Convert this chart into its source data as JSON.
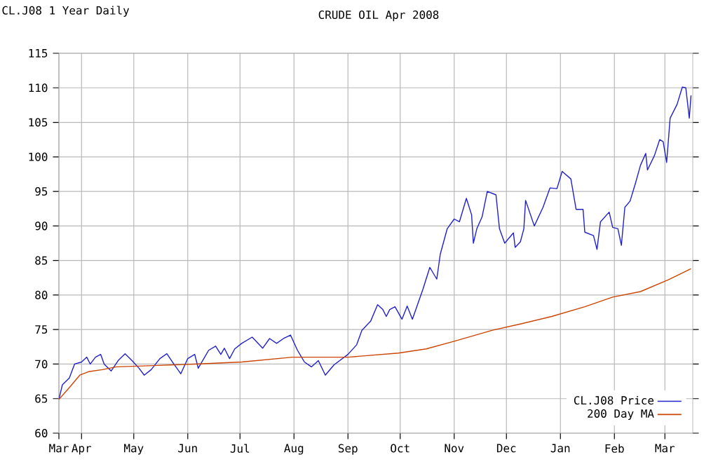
{
  "chart_data": {
    "type": "line",
    "title": "CRUDE OIL Apr 2008",
    "subtitle": "CL.J08 1 Year Daily",
    "xlim": [
      "2007-03-19",
      "2008-03-17"
    ],
    "xticks": [
      {
        "value": "2007-03-19",
        "label": "Mar"
      },
      {
        "value": "2007-04-01",
        "label": "Apr"
      },
      {
        "value": "2007-05-01",
        "label": "May"
      },
      {
        "value": "2007-06-01",
        "label": "Jun"
      },
      {
        "value": "2007-07-01",
        "label": "Jul"
      },
      {
        "value": "2007-08-01",
        "label": "Aug"
      },
      {
        "value": "2007-09-01",
        "label": "Sep"
      },
      {
        "value": "2007-10-01",
        "label": "Oct"
      },
      {
        "value": "2007-11-01",
        "label": "Nov"
      },
      {
        "value": "2007-12-01",
        "label": "Dec"
      },
      {
        "value": "2008-01-01",
        "label": "Jan"
      },
      {
        "value": "2008-02-01",
        "label": "Feb"
      },
      {
        "value": "2008-03-01",
        "label": "Mar"
      }
    ],
    "ylim": [
      60,
      115
    ],
    "yticks": [
      60,
      65,
      70,
      75,
      80,
      85,
      90,
      95,
      100,
      105,
      110,
      115
    ],
    "grid": true,
    "legend": "bottom right",
    "marker": "none",
    "line_style": "solid",
    "series": [
      {
        "name": "CL.J08 Price",
        "color": "#2020cc",
        "x": [
          "2007-03-19",
          "2007-03-21",
          "2007-03-25",
          "2007-03-28",
          "2007-04-01",
          "2007-04-04",
          "2007-04-06",
          "2007-04-09",
          "2007-04-12",
          "2007-04-14",
          "2007-04-18",
          "2007-04-22",
          "2007-04-26",
          "2007-04-30",
          "2007-05-04",
          "2007-05-07",
          "2007-05-11",
          "2007-05-16",
          "2007-05-20",
          "2007-05-24",
          "2007-05-28",
          "2007-06-01",
          "2007-06-05",
          "2007-06-07",
          "2007-06-13",
          "2007-06-17",
          "2007-06-20",
          "2007-06-22",
          "2007-06-25",
          "2007-06-28",
          "2007-07-02",
          "2007-07-08",
          "2007-07-14",
          "2007-07-18",
          "2007-07-22",
          "2007-07-26",
          "2007-07-30",
          "2007-08-03",
          "2007-08-07",
          "2007-08-11",
          "2007-08-15",
          "2007-08-19",
          "2007-08-24",
          "2007-09-01",
          "2007-09-06",
          "2007-09-09",
          "2007-09-14",
          "2007-09-18",
          "2007-09-21",
          "2007-09-23",
          "2007-09-25",
          "2007-09-28",
          "2007-10-02",
          "2007-10-05",
          "2007-10-08",
          "2007-10-14",
          "2007-10-18",
          "2007-10-22",
          "2007-10-24",
          "2007-10-28",
          "2007-11-01",
          "2007-11-04",
          "2007-11-08",
          "2007-11-11",
          "2007-11-12",
          "2007-11-14",
          "2007-11-17",
          "2007-11-20",
          "2007-11-25",
          "2007-11-27",
          "2007-11-30",
          "2007-12-05",
          "2007-12-06",
          "2007-12-09",
          "2007-12-11",
          "2007-12-12",
          "2007-12-17",
          "2007-12-22",
          "2007-12-26",
          "2007-12-30",
          "2008-01-02",
          "2008-01-07",
          "2008-01-10",
          "2008-01-14",
          "2008-01-15",
          "2008-01-20",
          "2008-01-22",
          "2008-01-24",
          "2008-01-29",
          "2008-01-31",
          "2008-02-03",
          "2008-02-05",
          "2008-02-07",
          "2008-02-10",
          "2008-02-13",
          "2008-02-16",
          "2008-02-19",
          "2008-02-20",
          "2008-02-24",
          "2008-02-27",
          "2008-02-29",
          "2008-03-02",
          "2008-03-04",
          "2008-03-08",
          "2008-03-11",
          "2008-03-13",
          "2008-03-15",
          "2008-03-16"
        ],
        "values": [
          64.9,
          67,
          68,
          70,
          70.3,
          71,
          70,
          71,
          71.4,
          70,
          69,
          70.5,
          71.5,
          70.5,
          69.4,
          68.4,
          69.2,
          70.8,
          71.5,
          70,
          68.6,
          70.8,
          71.4,
          69.4,
          72,
          72.6,
          71.4,
          72.3,
          70.8,
          72.2,
          73,
          73.9,
          72.3,
          73.7,
          73,
          73.7,
          74.2,
          72,
          70.3,
          69.6,
          70.5,
          68.4,
          69.9,
          71.4,
          72.8,
          74.9,
          76.2,
          78.6,
          77.9,
          76.9,
          77.9,
          78.3,
          76.5,
          78.4,
          76.5,
          80.8,
          84,
          82.3,
          85.9,
          89.6,
          91,
          90.6,
          94,
          91.6,
          87.5,
          89.6,
          91.3,
          95,
          94.5,
          89.6,
          87.5,
          89,
          86.9,
          87.7,
          89.6,
          93.7,
          90,
          92.7,
          95.5,
          95.4,
          97.9,
          96.8,
          92.4,
          92.4,
          89.1,
          88.6,
          86.6,
          90.6,
          92,
          89.8,
          89.6,
          87.2,
          92.7,
          93.6,
          96.1,
          98.8,
          100.5,
          98.1,
          100.2,
          102.5,
          102.2,
          99.2,
          105.6,
          107.6,
          110.1,
          110,
          105.6,
          108.9
        ]
      },
      {
        "name": "200 Day MA",
        "color": "#cc4400",
        "x": [
          "2007-03-19",
          "2007-03-25",
          "2007-03-31",
          "2007-04-05",
          "2007-04-13",
          "2007-04-21",
          "2007-05-15",
          "2007-06-05",
          "2007-07-02",
          "2007-07-31",
          "2007-09-01",
          "2007-09-30",
          "2007-10-16",
          "2007-11-01",
          "2007-11-23",
          "2007-12-09",
          "2007-12-27",
          "2008-01-15",
          "2008-01-31",
          "2008-02-16",
          "2008-03-03",
          "2008-03-16"
        ],
        "values": [
          64.9,
          66.6,
          68.4,
          68.9,
          69.2,
          69.6,
          69.8,
          70,
          70.3,
          71,
          71,
          71.6,
          72.2,
          73.3,
          74.9,
          75.8,
          76.9,
          78.3,
          79.7,
          80.5,
          82.2,
          83.8
        ]
      }
    ]
  }
}
